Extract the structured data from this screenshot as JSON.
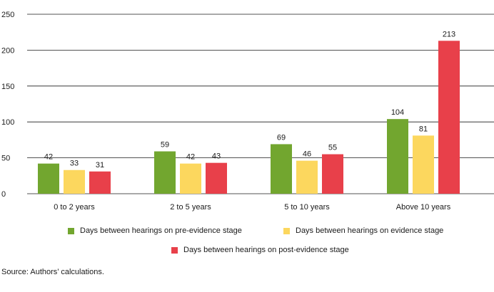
{
  "chart_data": {
    "type": "bar",
    "categories": [
      "0 to 2 years",
      "2 to 5 years",
      "5 to 10 years",
      "Above 10 years"
    ],
    "series": [
      {
        "name": "Days between hearings on pre-evidence stage",
        "color": "#72a62f",
        "values": [
          42,
          59,
          69,
          104
        ]
      },
      {
        "name": "Days between hearings on evidence stage",
        "color": "#fcd75e",
        "values": [
          33,
          42,
          46,
          81
        ]
      },
      {
        "name": "Days between hearings on post-evidence stage",
        "color": "#e8404a",
        "values": [
          31,
          43,
          55,
          213
        ]
      }
    ],
    "y_ticks": [
      "0",
      "50",
      "100",
      "150",
      "200",
      "250"
    ],
    "ylim": [
      0,
      250
    ],
    "grid": true,
    "legend_position": "bottom"
  },
  "source": "Source: Authors’ calculations."
}
